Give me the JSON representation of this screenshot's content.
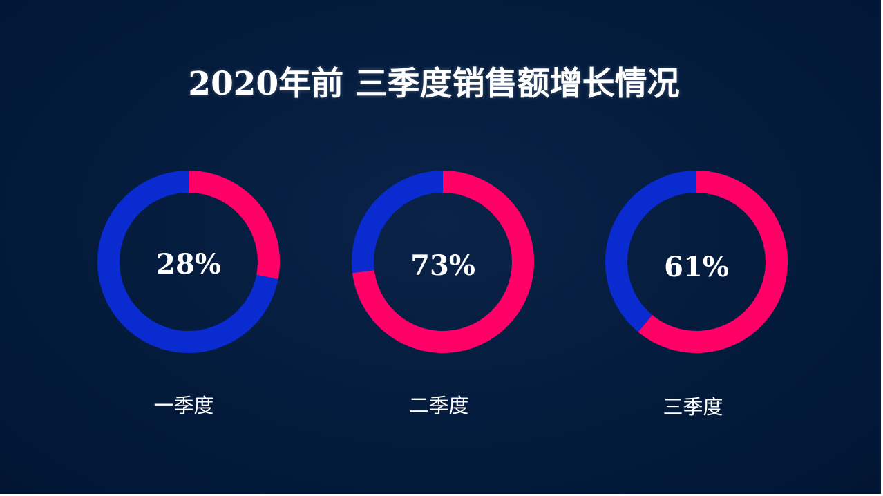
{
  "title": "2020年前 三季度销售额增长情况",
  "colors": {
    "background": "#03193a",
    "accent": "#ff0066",
    "base": "#0a2bd0",
    "text": "#ffffff"
  },
  "chart_data": {
    "type": "pie",
    "title": "2020年前 三季度销售额增长情况",
    "series": [
      {
        "name": "一季度",
        "value": 28,
        "label": "28%"
      },
      {
        "name": "二季度",
        "value": 73,
        "label": "73%"
      },
      {
        "name": "三季度",
        "value": 61,
        "label": "61%"
      }
    ]
  }
}
